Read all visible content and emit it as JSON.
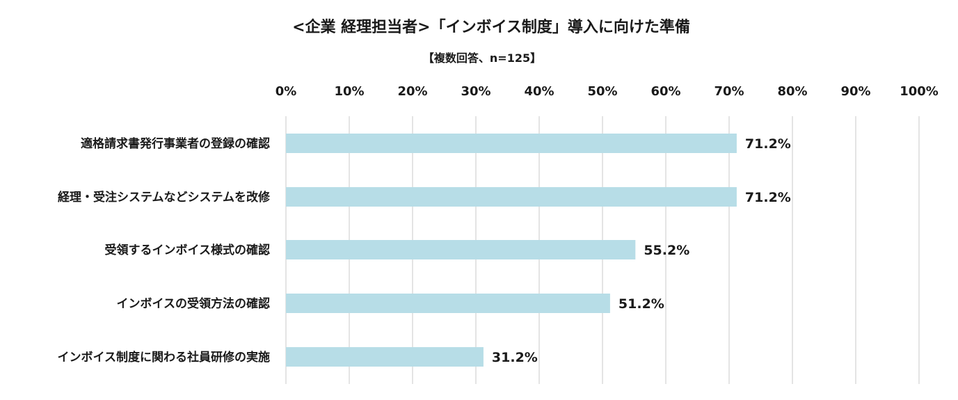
{
  "chart_data": {
    "type": "bar",
    "orientation": "horizontal",
    "title": "<企業 経理担当者>「インボイス制度」導入に向けた準備",
    "subtitle": "【複数回答、n=125】",
    "xlabel": "",
    "ylabel": "",
    "xlim": [
      0,
      100
    ],
    "grid": true,
    "tick_labels": [
      "0%",
      "10%",
      "20%",
      "30%",
      "40%",
      "50%",
      "60%",
      "70%",
      "80%",
      "90%",
      "100%"
    ],
    "categories": [
      "適格請求書発行事業者の登録の確認",
      "経理・受注システムなどシステムを改修",
      "受領するインボイス様式の確認",
      "インボイスの受領方法の確認",
      "インボイス制度に関わる社員研修の実施"
    ],
    "values": [
      71.2,
      71.2,
      55.2,
      51.2,
      31.2
    ],
    "value_labels": [
      "71.2%",
      "71.2%",
      "55.2%",
      "51.2%",
      "31.2%"
    ],
    "colors": {
      "bar": "#b7dde7",
      "grid": "#c8c8c8",
      "text": "#1a1a1a"
    }
  }
}
